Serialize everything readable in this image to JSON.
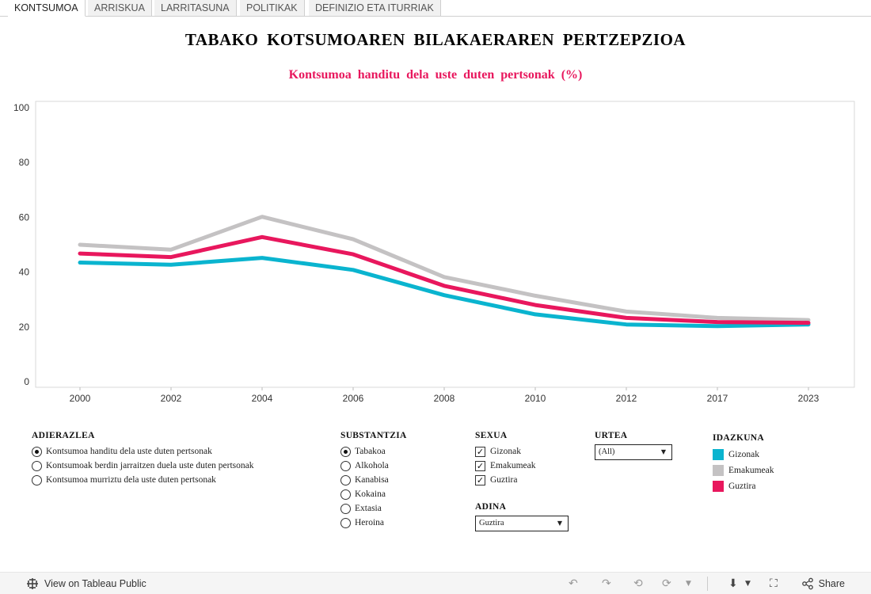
{
  "tabs": [
    "KONTSUMOA",
    "ARRISKUA",
    "LARRITASUNA",
    "POLITIKAK",
    "DEFINIZIO ETA ITURRIAK"
  ],
  "title": "TABAKO KOTSUMOAREN BILAKAERAREN PERTZEPZIOA",
  "colors": {
    "gizonak": "#0ab4cf",
    "emakumeak": "#c4c2c3",
    "guztira": "#e8175d",
    "subtitle": "#e8175d"
  },
  "chart_data": {
    "type": "line",
    "title": "Kontsumoa handitu dela uste duten pertsonak (%)",
    "categories": [
      "2000",
      "2002",
      "2004",
      "2006",
      "2008",
      "2010",
      "2012",
      "2017",
      "2023"
    ],
    "yticks": [
      "100",
      "80",
      "60",
      "40",
      "20",
      "0"
    ],
    "ylim": [
      0,
      100
    ],
    "grid": false,
    "series": [
      {
        "name": "Emakumeak",
        "color": "#c4c2c3",
        "values": [
          50.0,
          48.2,
          60.2,
          52.0,
          38.2,
          31.4,
          25.6,
          23.3,
          22.5
        ]
      },
      {
        "name": "Gizonak",
        "color": "#0ab4cf",
        "values": [
          43.5,
          42.7,
          45.2,
          40.8,
          31.6,
          24.6,
          20.9,
          20.3,
          20.9
        ]
      },
      {
        "name": "Guztira",
        "color": "#e8175d",
        "values": [
          46.8,
          45.5,
          52.8,
          46.5,
          35.0,
          28.0,
          23.3,
          21.8,
          21.5
        ]
      }
    ]
  },
  "filters": {
    "adierazlea": {
      "title": "ADIERAZLEA",
      "options": [
        "Kontsumoa handitu dela uste duten pertsonak",
        "Kontsumoak berdin jarraitzen duela uste duten pertsonak",
        "Kontsumoa murriztu dela uste duten pertsonak"
      ]
    },
    "substantzia": {
      "title": "SUBSTANTZIA",
      "options": [
        "Tabakoa",
        "Alkohola",
        "Kanabisa",
        "Kokaina",
        "Extasia",
        "Heroina"
      ]
    },
    "sexua": {
      "title": "SEXUA",
      "options": [
        "Gizonak",
        "Emakumeak",
        "Guztira"
      ]
    },
    "urtea": {
      "title": "URTEA",
      "value": "(All)"
    },
    "adina": {
      "title": "ADINA",
      "value": "Guztira"
    },
    "idazkuna": {
      "title": "IDAZKUNA",
      "items": [
        "Gizonak",
        "Emakumeak",
        "Guztira"
      ]
    }
  },
  "toolbar": {
    "view_label": "View on Tableau Public",
    "share_label": "Share"
  }
}
